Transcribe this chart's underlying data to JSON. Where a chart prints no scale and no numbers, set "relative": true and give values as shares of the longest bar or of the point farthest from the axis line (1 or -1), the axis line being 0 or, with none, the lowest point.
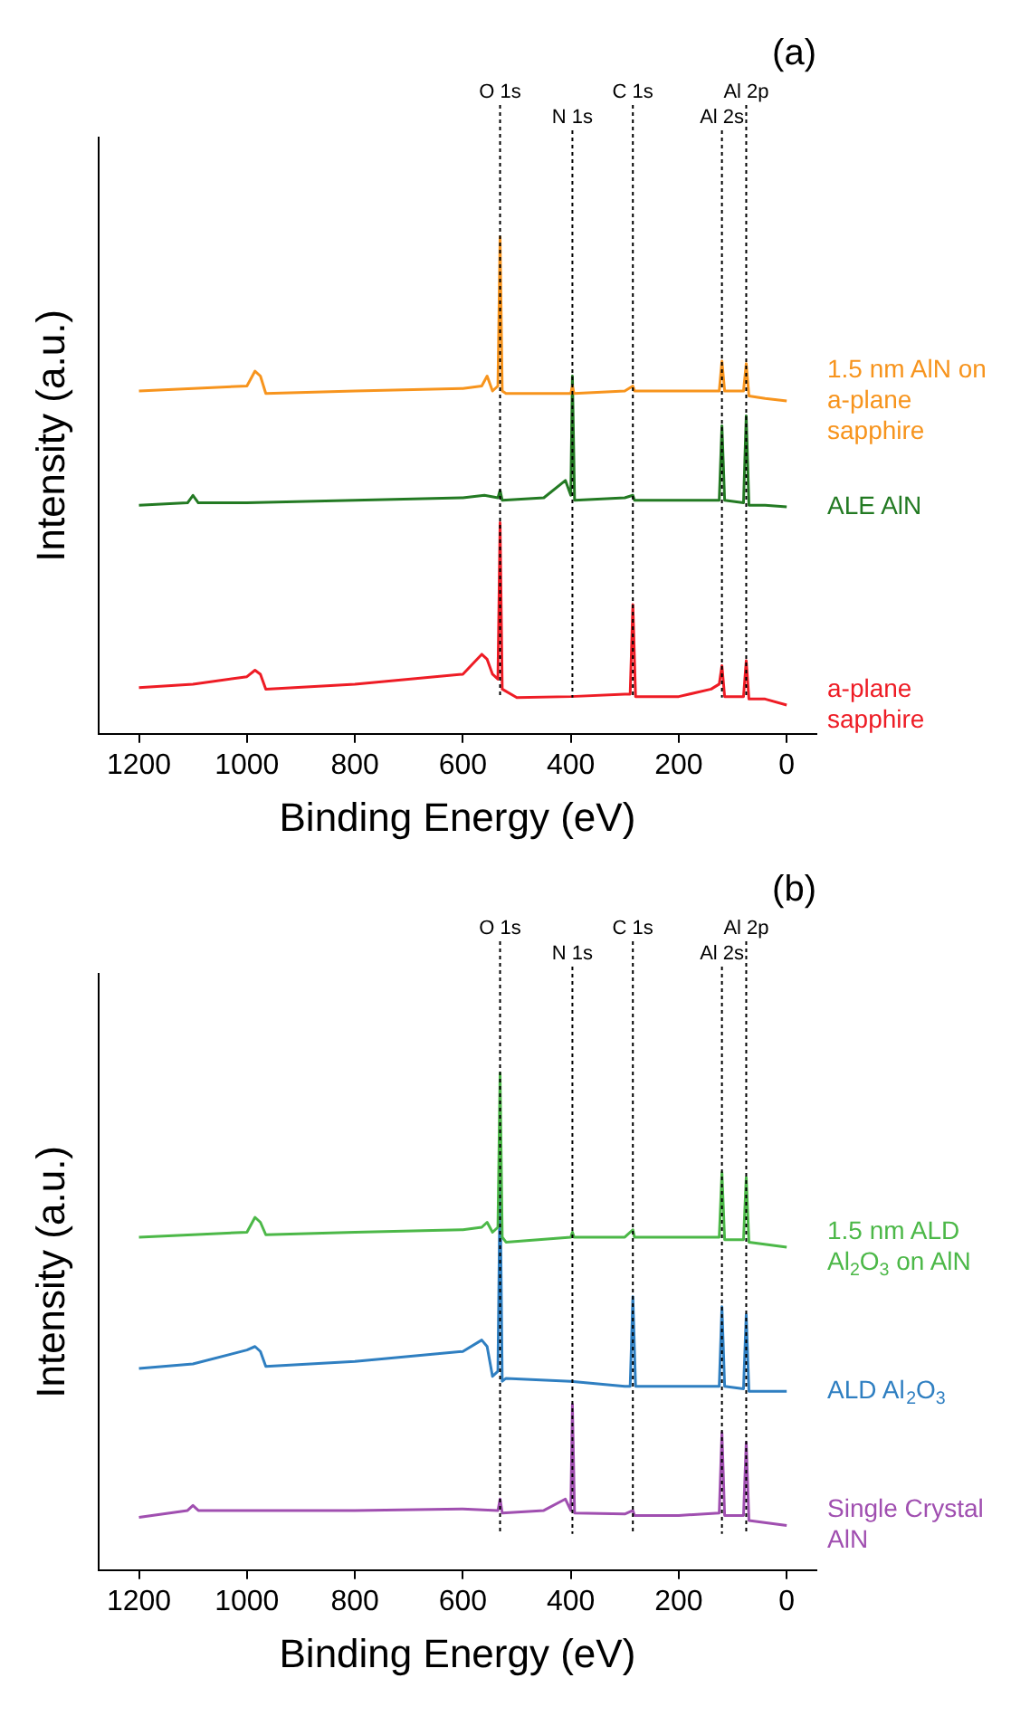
{
  "chart_data": [
    {
      "type": "line",
      "title": "(a)",
      "xlabel": "Binding Energy (eV)",
      "ylabel": "Intensity (a.u.)",
      "relative": true,
      "xlim": [
        1275,
        -55
      ],
      "xticks": [
        1200,
        1000,
        800,
        600,
        400,
        200,
        0
      ],
      "grid": false,
      "legend": false,
      "ref_lines": [
        {
          "axis": "x",
          "value": 531,
          "label": "O 1s"
        },
        {
          "axis": "x",
          "value": 397,
          "label": "N 1s"
        },
        {
          "axis": "x",
          "value": 285,
          "label": "C 1s"
        },
        {
          "axis": "x",
          "value": 120,
          "label": "Al 2s"
        },
        {
          "axis": "x",
          "value": 75,
          "label": "Al 2p"
        }
      ],
      "series": [
        {
          "name": "1.5 nm AlN on a-plane sapphire",
          "color": "#f7941d",
          "x": [
            1200,
            1100,
            1000,
            985,
            975,
            965,
            800,
            600,
            565,
            555,
            545,
            535,
            531,
            527,
            520,
            450,
            400,
            397,
            394,
            300,
            285,
            282,
            200,
            125,
            120,
            115,
            80,
            75,
            70,
            40,
            0
          ],
          "values": [
            0.69,
            0.695,
            0.7,
            0.73,
            0.72,
            0.685,
            0.69,
            0.695,
            0.7,
            0.72,
            0.69,
            0.7,
            1.0,
            0.69,
            0.685,
            0.685,
            0.685,
            0.7,
            0.685,
            0.69,
            0.7,
            0.69,
            0.69,
            0.69,
            0.75,
            0.69,
            0.69,
            0.745,
            0.68,
            0.675,
            0.67
          ]
        },
        {
          "name": "ALE AlN",
          "color": "#237a23",
          "x": [
            1200,
            1110,
            1100,
            1090,
            1000,
            800,
            600,
            560,
            535,
            531,
            527,
            450,
            410,
            400,
            397,
            393,
            300,
            285,
            282,
            200,
            125,
            120,
            115,
            80,
            75,
            70,
            40,
            0
          ],
          "values": [
            0.46,
            0.465,
            0.48,
            0.465,
            0.465,
            0.47,
            0.475,
            0.48,
            0.475,
            0.49,
            0.47,
            0.475,
            0.51,
            0.48,
            0.72,
            0.47,
            0.475,
            0.48,
            0.47,
            0.47,
            0.47,
            0.62,
            0.47,
            0.465,
            0.64,
            0.46,
            0.46,
            0.457
          ]
        },
        {
          "name": "a-plane sapphire",
          "color": "#ee1c25",
          "x": [
            1200,
            1100,
            1000,
            985,
            975,
            965,
            800,
            600,
            565,
            555,
            545,
            535,
            531,
            527,
            500,
            400,
            300,
            290,
            285,
            280,
            200,
            140,
            125,
            120,
            115,
            80,
            75,
            70,
            40,
            0
          ],
          "values": [
            0.093,
            0.1,
            0.115,
            0.128,
            0.12,
            0.09,
            0.1,
            0.12,
            0.16,
            0.15,
            0.12,
            0.11,
            0.425,
            0.09,
            0.073,
            0.075,
            0.08,
            0.08,
            0.26,
            0.075,
            0.075,
            0.09,
            0.1,
            0.137,
            0.075,
            0.075,
            0.147,
            0.07,
            0.07,
            0.058
          ]
        }
      ]
    },
    {
      "type": "line",
      "title": "(b)",
      "xlabel": "Binding Energy (eV)",
      "ylabel": "Intensity (a.u.)",
      "relative": true,
      "xlim": [
        1275,
        -55
      ],
      "xticks": [
        1200,
        1000,
        800,
        600,
        400,
        200,
        0
      ],
      "grid": false,
      "legend": false,
      "ref_lines": [
        {
          "axis": "x",
          "value": 531,
          "label": "O 1s"
        },
        {
          "axis": "x",
          "value": 397,
          "label": "N 1s"
        },
        {
          "axis": "x",
          "value": 285,
          "label": "C 1s"
        },
        {
          "axis": "x",
          "value": 120,
          "label": "Al 2s"
        },
        {
          "axis": "x",
          "value": 75,
          "label": "Al 2p"
        }
      ],
      "series": [
        {
          "name": "1.5 nm ALD Al$_{2}$O$_{3}$ on AlN",
          "color": "#4cb848",
          "x": [
            1200,
            1000,
            985,
            975,
            965,
            800,
            600,
            565,
            555,
            545,
            535,
            531,
            527,
            520,
            400,
            397,
            394,
            300,
            285,
            282,
            200,
            125,
            120,
            115,
            80,
            75,
            70,
            0
          ],
          "values": [
            0.67,
            0.68,
            0.71,
            0.7,
            0.675,
            0.68,
            0.685,
            0.69,
            0.7,
            0.68,
            0.69,
            1.0,
            0.67,
            0.66,
            0.67,
            0.68,
            0.67,
            0.67,
            0.685,
            0.67,
            0.67,
            0.67,
            0.8,
            0.665,
            0.665,
            0.79,
            0.66,
            0.65
          ]
        },
        {
          "name": "ALD Al$_{2}$O$_{3}$",
          "color": "#2f7fc1",
          "x": [
            1200,
            1100,
            1000,
            985,
            975,
            965,
            800,
            600,
            565,
            555,
            545,
            535,
            531,
            527,
            520,
            400,
            300,
            290,
            285,
            280,
            200,
            125,
            120,
            115,
            80,
            75,
            70,
            0
          ],
          "values": [
            0.406,
            0.415,
            0.443,
            0.45,
            0.44,
            0.41,
            0.42,
            0.44,
            0.463,
            0.45,
            0.39,
            0.4,
            0.786,
            0.38,
            0.386,
            0.38,
            0.37,
            0.37,
            0.55,
            0.37,
            0.37,
            0.37,
            0.53,
            0.37,
            0.365,
            0.514,
            0.36,
            0.36
          ]
        },
        {
          "name": "Single Crystal AlN",
          "color": "#a04fb0",
          "x": [
            1200,
            1110,
            1100,
            1090,
            1000,
            800,
            600,
            535,
            531,
            527,
            450,
            410,
            400,
            397,
            393,
            300,
            285,
            282,
            200,
            125,
            120,
            115,
            80,
            75,
            70,
            0
          ],
          "values": [
            0.106,
            0.12,
            0.13,
            0.12,
            0.12,
            0.12,
            0.123,
            0.12,
            0.143,
            0.115,
            0.12,
            0.143,
            0.12,
            0.334,
            0.115,
            0.113,
            0.12,
            0.11,
            0.11,
            0.115,
            0.277,
            0.11,
            0.11,
            0.257,
            0.1,
            0.09
          ]
        }
      ]
    }
  ]
}
